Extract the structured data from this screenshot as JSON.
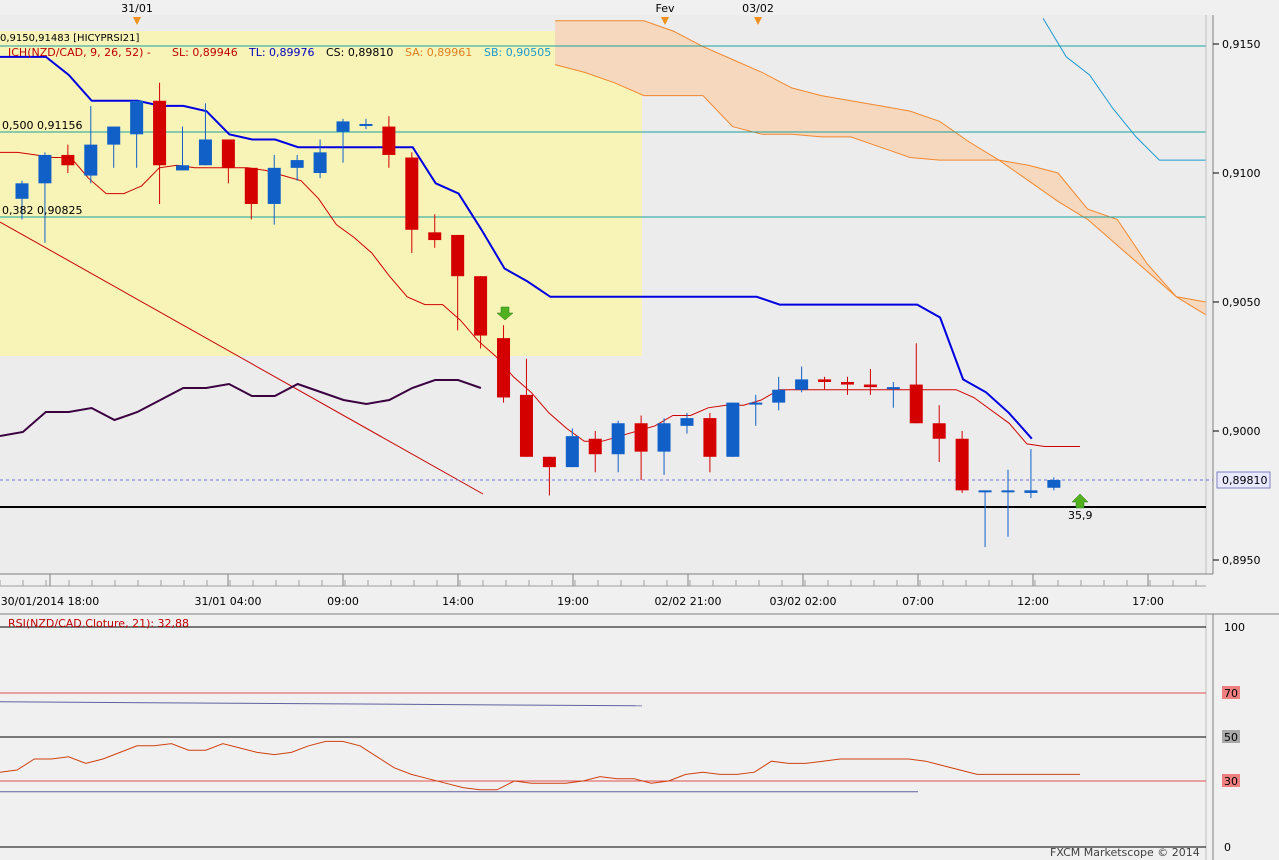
{
  "top_markers": [
    {
      "label": "31/01",
      "x": "31/01 05:00"
    },
    {
      "label": "Fev",
      "x": "02/02 22:00"
    },
    {
      "label": "03/02",
      "x": "03/02 02:00"
    }
  ],
  "overlay_title": "0,9150,91483 [HICYPRSI21]",
  "ichimoku_legend": {
    "name": "ICH(NZD/CAD, 9, 26, 52) -",
    "sl": "SL: 0,89946",
    "tl": "TL: 0,89976",
    "cs": "CS: 0,89810",
    "sa": "SA: 0,89961",
    "sb": "SB: 0,90505"
  },
  "fib_labels": {
    "f500": "0,500 0,91156",
    "f382": "0,382 0,90825"
  },
  "price_axis": {
    "ticks": [
      "0,9150",
      "0,9100",
      "0,9050",
      "0,9000",
      "0,8950"
    ],
    "current_price": "0,89810"
  },
  "time_axis": {
    "ticks": [
      "30/01/2014 18:00",
      "31/01 04:00",
      "09:00",
      "14:00",
      "19:00",
      "02/02 21:00",
      "03/02 02:00",
      "07:00",
      "12:00",
      "17:00"
    ]
  },
  "annotation_value": "35,9",
  "rsi_panel": {
    "title": "RSI(NZD/CAD.Cloture, 21): 32,88",
    "levels": [
      "100",
      "70",
      "50",
      "30",
      "0"
    ]
  },
  "watermark": "FXCM Marketscope © 2014",
  "colors": {
    "bull": "#1060c8",
    "bear": "#d40000",
    "kijun": "#0000e0",
    "tenkan": "#d00000",
    "cloud": "#f5d5b5",
    "cloud_edge": "#f07820",
    "span_b": "#1a9ad0",
    "fib_zone": "#f8f4b8",
    "rsi_overlay": "#3a0040",
    "rsi_line": "#d04010"
  },
  "chart_data": [
    {
      "type": "candlestick",
      "title": "NZD/CAD",
      "ylim": [
        0.8935,
        0.9165
      ],
      "candles": [
        [
          0.909,
          0.9097,
          0.9082,
          0.9096
        ],
        [
          0.9096,
          0.9108,
          0.9073,
          0.9107
        ],
        [
          0.9107,
          0.9111,
          0.91,
          0.9103
        ],
        [
          0.9099,
          0.9126,
          0.9096,
          0.9111
        ],
        [
          0.9111,
          0.9117,
          0.9102,
          0.9118
        ],
        [
          0.9115,
          0.9128,
          0.9102,
          0.9128
        ],
        [
          0.9128,
          0.9135,
          0.9088,
          0.9103
        ],
        [
          0.9101,
          0.9118,
          0.9101,
          0.9103
        ],
        [
          0.9103,
          0.9127,
          0.9103,
          0.9113
        ],
        [
          0.9113,
          0.9113,
          0.9096,
          0.9102
        ],
        [
          0.9102,
          0.9102,
          0.9082,
          0.9088
        ],
        [
          0.9088,
          0.9107,
          0.908,
          0.9102
        ],
        [
          0.9102,
          0.9107,
          0.9097,
          0.9105
        ],
        [
          0.91,
          0.9113,
          0.9098,
          0.9108
        ],
        [
          0.9116,
          0.9121,
          0.9104,
          0.912
        ],
        [
          0.9119,
          0.9121,
          0.9117,
          0.9119
        ],
        [
          0.9118,
          0.9122,
          0.9102,
          0.9107
        ],
        [
          0.9106,
          0.9108,
          0.9069,
          0.9078
        ],
        [
          0.9077,
          0.9084,
          0.9071,
          0.9074
        ],
        [
          0.9076,
          0.9076,
          0.9039,
          0.906
        ],
        [
          0.906,
          0.906,
          0.9032,
          0.9037
        ],
        [
          0.9036,
          0.9041,
          0.9011,
          0.9013
        ],
        [
          0.9014,
          0.9028,
          0.899,
          0.899
        ],
        [
          0.899,
          0.899,
          0.8975,
          0.8986
        ],
        [
          0.8986,
          0.9001,
          0.8986,
          0.8998
        ],
        [
          0.8997,
          0.9,
          0.8984,
          0.8991
        ],
        [
          0.8991,
          0.9004,
          0.8984,
          0.9003
        ],
        [
          0.9003,
          0.9006,
          0.8981,
          0.8992
        ],
        [
          0.8992,
          0.9005,
          0.8983,
          0.9003
        ],
        [
          0.9002,
          0.9007,
          0.8999,
          0.9005
        ],
        [
          0.9005,
          0.9007,
          0.8984,
          0.899
        ],
        [
          0.899,
          0.9011,
          0.899,
          0.9011
        ],
        [
          0.9011,
          0.9014,
          0.9002,
          0.9011
        ],
        [
          0.9011,
          0.9021,
          0.9008,
          0.9016
        ],
        [
          0.9016,
          0.9025,
          0.9015,
          0.902
        ],
        [
          0.902,
          0.9021,
          0.9016,
          0.9019
        ],
        [
          0.9019,
          0.9021,
          0.9014,
          0.9018
        ],
        [
          0.9018,
          0.9024,
          0.9014,
          0.9017
        ],
        [
          0.9017,
          0.9019,
          0.9009,
          0.9017
        ],
        [
          0.9018,
          0.9034,
          0.9003,
          0.9003
        ],
        [
          0.9003,
          0.901,
          0.8988,
          0.8997
        ],
        [
          0.8997,
          0.9,
          0.8976,
          0.8977
        ],
        [
          0.8977,
          0.8977,
          0.8955,
          0.8977
        ],
        [
          0.8977,
          0.8985,
          0.8959,
          0.8977
        ],
        [
          0.8976,
          0.8993,
          0.8974,
          0.8977
        ],
        [
          0.8978,
          0.8982,
          0.8977,
          0.8981
        ]
      ],
      "kijun": [
        0.9145,
        0.9145,
        0.9145,
        0.9138,
        0.9128,
        0.9128,
        0.9128,
        0.9126,
        0.9126,
        0.9124,
        0.9115,
        0.9113,
        0.9113,
        0.911,
        0.911,
        0.911,
        0.911,
        0.911,
        0.911,
        0.9096,
        0.9092,
        0.9078,
        0.9063,
        0.9058,
        0.9052,
        0.9052,
        0.9052,
        0.9052,
        0.9052,
        0.9052,
        0.9052,
        0.9052,
        0.9052,
        0.9052,
        0.9049,
        0.9049,
        0.9049,
        0.9049,
        0.9049,
        0.9049,
        0.9049,
        0.9044,
        0.902,
        0.9015,
        0.9007,
        0.8997
      ],
      "tenkan": [
        0.9108,
        0.9108,
        0.9107,
        0.9106,
        0.9106,
        0.9098,
        0.9092,
        0.9092,
        0.9095,
        0.9102,
        0.9103,
        0.9102,
        0.9102,
        0.9102,
        0.9102,
        0.9101,
        0.9099,
        0.9097,
        0.909,
        0.908,
        0.9075,
        0.9069,
        0.906,
        0.9052,
        0.9049,
        0.9049,
        0.9043,
        0.9035,
        0.9029,
        0.9021,
        0.9015,
        0.9007,
        0.9001,
        0.8996,
        0.8996,
        0.8998,
        0.9,
        0.9002,
        0.9006,
        0.9006,
        0.9009,
        0.901,
        0.901,
        0.9012,
        0.9016,
        0.9016,
        0.9016,
        0.9016,
        0.9016,
        0.9016,
        0.9016,
        0.9016,
        0.9016,
        0.9016,
        0.9016,
        0.9013,
        0.9008,
        0.9003,
        0.8995,
        0.8994,
        0.8994,
        0.8994
      ],
      "cloud_top": [
        0.9159,
        0.9159,
        0.9159,
        0.9159,
        0.9155,
        0.9149,
        0.9144,
        0.9139,
        0.9133,
        0.913,
        0.9128,
        0.9126,
        0.9124,
        0.912,
        0.9112,
        0.9105,
        0.9097,
        0.9089,
        0.9082,
        0.9072,
        0.9062,
        0.9052,
        0.9045
      ],
      "cloud_bottom": [
        0.9142,
        0.9139,
        0.9135,
        0.913,
        0.913,
        0.913,
        0.9118,
        0.9115,
        0.9115,
        0.9114,
        0.9114,
        0.911,
        0.9106,
        0.9105,
        0.9105,
        0.9105,
        0.9103,
        0.91,
        0.9086,
        0.9082,
        0.9065,
        0.9052,
        0.905
      ],
      "span_b": [
        0.916,
        0.9145,
        0.9138,
        0.9125,
        0.9114,
        0.9105,
        0.9105,
        0.9105
      ],
      "fib_levels": [
        {
          "label": "0,500",
          "value": 0.91156
        },
        {
          "label": "0,382",
          "value": 0.90825
        }
      ],
      "current_price": 0.8981,
      "support": 0.8972
    },
    {
      "type": "line",
      "title": "RSI(NZD/CAD.Cloture, 21): 32,88",
      "ylim": [
        0,
        100
      ],
      "levels": [
        100,
        70,
        50,
        30,
        0
      ],
      "rsi": [
        34,
        35,
        40,
        40,
        41,
        38,
        40,
        43,
        46,
        46,
        47,
        44,
        44,
        47,
        45,
        43,
        42,
        43,
        46,
        48,
        48,
        46,
        41,
        36,
        33,
        31,
        29,
        27,
        26,
        26,
        30,
        29,
        29,
        29,
        30,
        32,
        31,
        31,
        29,
        30,
        33,
        34,
        33,
        33,
        34,
        39,
        38,
        38,
        39,
        40,
        40,
        40,
        40,
        40,
        39,
        37,
        35,
        33,
        33,
        33,
        33,
        33,
        33,
        33
      ],
      "trend_upper": 66,
      "trend_lower": 26
    }
  ]
}
